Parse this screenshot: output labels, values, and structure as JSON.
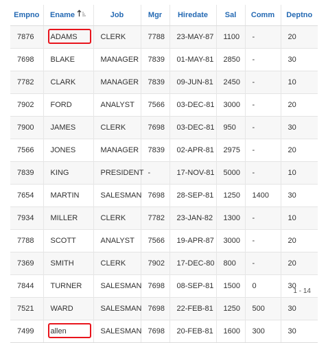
{
  "columns": {
    "empno": "Empno",
    "ename": "Ename",
    "job": "Job",
    "mgr": "Mgr",
    "hiredate": "Hiredate",
    "sal": "Sal",
    "comm": "Comm",
    "deptno": "Deptno"
  },
  "sort": {
    "column": "ename",
    "direction": "ascending",
    "icon": "sort-ascending-icon"
  },
  "rows": [
    {
      "empno": "7876",
      "ename": "ADAMS",
      "job": "CLERK",
      "mgr": "7788",
      "hiredate": "23-MAY-87",
      "sal": "1100",
      "comm": "-",
      "deptno": "20"
    },
    {
      "empno": "7698",
      "ename": "BLAKE",
      "job": "MANAGER",
      "mgr": "7839",
      "hiredate": "01-MAY-81",
      "sal": "2850",
      "comm": "-",
      "deptno": "30"
    },
    {
      "empno": "7782",
      "ename": "CLARK",
      "job": "MANAGER",
      "mgr": "7839",
      "hiredate": "09-JUN-81",
      "sal": "2450",
      "comm": "-",
      "deptno": "10"
    },
    {
      "empno": "7902",
      "ename": "FORD",
      "job": "ANALYST",
      "mgr": "7566",
      "hiredate": "03-DEC-81",
      "sal": "3000",
      "comm": "-",
      "deptno": "20"
    },
    {
      "empno": "7900",
      "ename": "JAMES",
      "job": "CLERK",
      "mgr": "7698",
      "hiredate": "03-DEC-81",
      "sal": "950",
      "comm": "-",
      "deptno": "30"
    },
    {
      "empno": "7566",
      "ename": "JONES",
      "job": "MANAGER",
      "mgr": "7839",
      "hiredate": "02-APR-81",
      "sal": "2975",
      "comm": "-",
      "deptno": "20"
    },
    {
      "empno": "7839",
      "ename": "KING",
      "job": "PRESIDENT",
      "mgr": "-",
      "hiredate": "17-NOV-81",
      "sal": "5000",
      "comm": "-",
      "deptno": "10"
    },
    {
      "empno": "7654",
      "ename": "MARTIN",
      "job": "SALESMAN",
      "mgr": "7698",
      "hiredate": "28-SEP-81",
      "sal": "1250",
      "comm": "1400",
      "deptno": "30"
    },
    {
      "empno": "7934",
      "ename": "MILLER",
      "job": "CLERK",
      "mgr": "7782",
      "hiredate": "23-JAN-82",
      "sal": "1300",
      "comm": "-",
      "deptno": "10"
    },
    {
      "empno": "7788",
      "ename": "SCOTT",
      "job": "ANALYST",
      "mgr": "7566",
      "hiredate": "19-APR-87",
      "sal": "3000",
      "comm": "-",
      "deptno": "20"
    },
    {
      "empno": "7369",
      "ename": "SMITH",
      "job": "CLERK",
      "mgr": "7902",
      "hiredate": "17-DEC-80",
      "sal": "800",
      "comm": "-",
      "deptno": "20"
    },
    {
      "empno": "7844",
      "ename": "TURNER",
      "job": "SALESMAN",
      "mgr": "7698",
      "hiredate": "08-SEP-81",
      "sal": "1500",
      "comm": "0",
      "deptno": "30"
    },
    {
      "empno": "7521",
      "ename": "WARD",
      "job": "SALESMAN",
      "mgr": "7698",
      "hiredate": "22-FEB-81",
      "sal": "1250",
      "comm": "500",
      "deptno": "30"
    },
    {
      "empno": "7499",
      "ename": "allen",
      "job": "SALESMAN",
      "mgr": "7698",
      "hiredate": "20-FEB-81",
      "sal": "1600",
      "comm": "300",
      "deptno": "30"
    }
  ],
  "highlighted_rows": [
    0,
    13
  ],
  "highlight_color": "#e8141c",
  "header_color": "#2469b3",
  "pagination": {
    "label": "1 - 14"
  }
}
